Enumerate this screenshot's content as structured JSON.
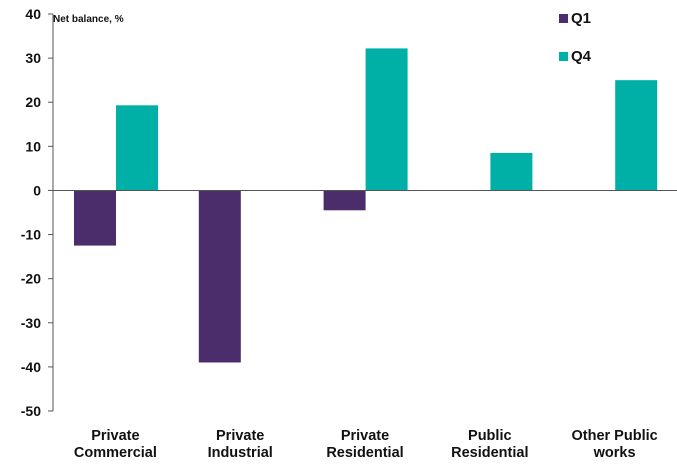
{
  "chart_data": {
    "type": "bar",
    "ylabel": "Net balance, %",
    "categories": [
      [
        "Private",
        "Commercial"
      ],
      [
        "Private",
        "Industrial"
      ],
      [
        "Private",
        "Residential"
      ],
      [
        "Public",
        "Residential"
      ],
      [
        "Other Public",
        "works"
      ]
    ],
    "series": [
      {
        "name": "Q1",
        "color": "#4b2d6b",
        "values": [
          -12.5,
          -39,
          -4.5,
          null,
          null
        ]
      },
      {
        "name": "Q4",
        "color": "#00b0a6",
        "values": [
          19.3,
          null,
          32.2,
          8.5,
          25
        ]
      }
    ],
    "ylim": [
      -50,
      40
    ],
    "yticks": [
      40,
      30,
      20,
      10,
      0,
      -10,
      -20,
      -30,
      -40,
      -50
    ],
    "grid": false,
    "legend": "top-right"
  }
}
